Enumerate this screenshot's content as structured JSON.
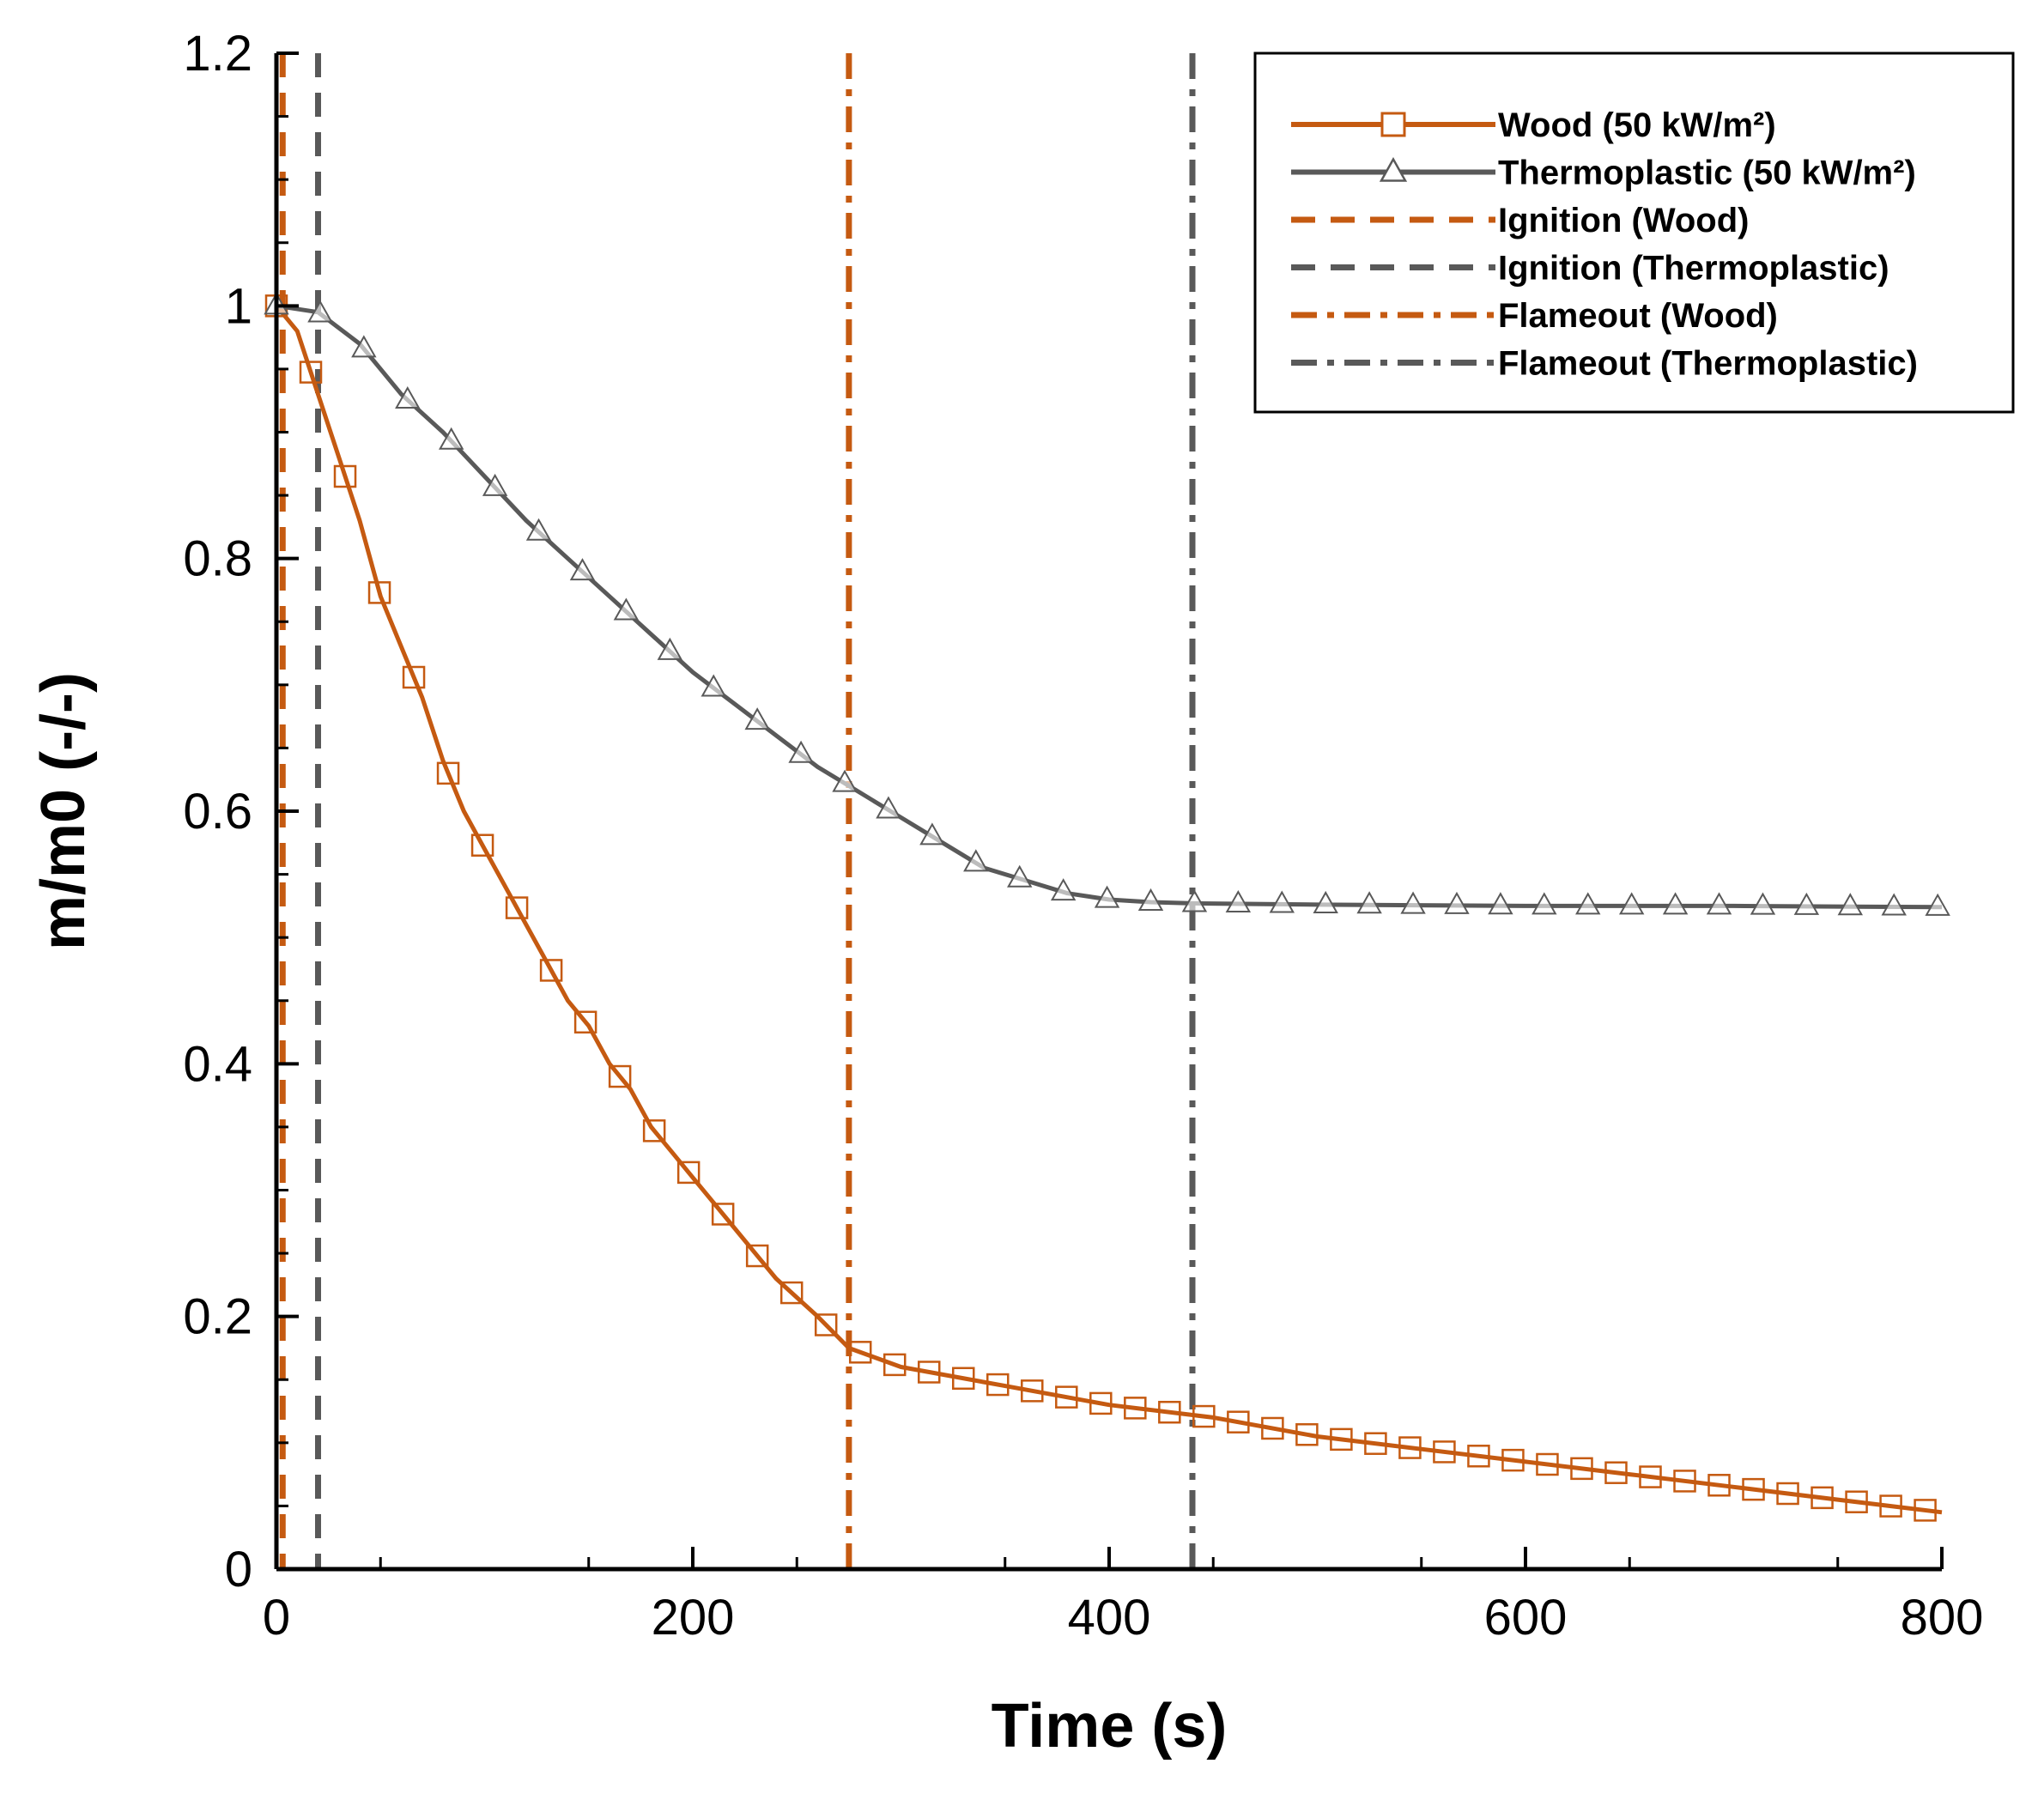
{
  "chart_data": {
    "type": "line",
    "xlabel": "Time (s)",
    "ylabel": "m/m0 (-/-)",
    "xlim": [
      0,
      800
    ],
    "ylim": [
      0,
      1.2
    ],
    "xticks": [
      0,
      200,
      400,
      600,
      800
    ],
    "xtick_labels": [
      "0",
      "200",
      "400",
      "600",
      "800"
    ],
    "yticks": [
      0,
      0.2,
      0.4,
      0.6,
      0.8,
      1,
      1.2
    ],
    "ytick_labels": [
      "0",
      "0.2",
      "0.4",
      "0.6",
      "0.8",
      "1",
      "1.2"
    ],
    "grid": false,
    "legend_position": "top-right",
    "colors": {
      "wood": "#c55a11",
      "thermoplastic": "#595959",
      "axis": "#000000"
    },
    "series": [
      {
        "name": "Wood (50 kW/m²)",
        "color": "#c55a11",
        "marker": "square",
        "x": [
          0,
          10,
          20,
          30,
          40,
          50,
          60,
          70,
          80,
          90,
          100,
          110,
          120,
          130,
          140,
          150,
          160,
          170,
          180,
          190,
          200,
          220,
          240,
          260,
          275,
          300,
          350,
          400,
          450,
          500,
          550,
          600,
          650,
          700,
          750,
          800
        ],
        "values": [
          1.0,
          0.98,
          0.93,
          0.88,
          0.83,
          0.77,
          0.73,
          0.69,
          0.64,
          0.6,
          0.57,
          0.54,
          0.51,
          0.48,
          0.45,
          0.43,
          0.4,
          0.38,
          0.35,
          0.33,
          0.31,
          0.27,
          0.23,
          0.2,
          0.175,
          0.16,
          0.145,
          0.13,
          0.12,
          0.105,
          0.095,
          0.085,
          0.075,
          0.065,
          0.055,
          0.045
        ]
      },
      {
        "name": "Thermoplastic (50 kW/m²)",
        "color": "#595959",
        "marker": "triangle",
        "x": [
          0,
          20,
          40,
          60,
          80,
          100,
          120,
          140,
          160,
          180,
          200,
          220,
          240,
          260,
          280,
          300,
          320,
          340,
          360,
          380,
          400,
          420,
          440,
          500,
          600,
          700,
          800
        ],
        "values": [
          1.0,
          0.995,
          0.97,
          0.93,
          0.9,
          0.865,
          0.83,
          0.8,
          0.77,
          0.74,
          0.71,
          0.685,
          0.66,
          0.635,
          0.615,
          0.595,
          0.575,
          0.555,
          0.545,
          0.535,
          0.53,
          0.528,
          0.527,
          0.526,
          0.525,
          0.525,
          0.524
        ]
      }
    ],
    "vertical_lines": [
      {
        "name": "Ignition (Wood)",
        "x": 3,
        "color": "#c55a11",
        "style": "dash"
      },
      {
        "name": "Ignition (Thermoplastic)",
        "x": 20,
        "color": "#595959",
        "style": "dash"
      },
      {
        "name": "Flameout (Wood)",
        "x": 275,
        "color": "#c55a11",
        "style": "dashdot"
      },
      {
        "name": "Flameout (Thermoplastic)",
        "x": 440,
        "color": "#595959",
        "style": "dashdot"
      }
    ],
    "legend": [
      {
        "label": "Wood (50 kW/m²)",
        "color": "#c55a11",
        "style": "solid",
        "marker": "square"
      },
      {
        "label": "Thermoplastic (50 kW/m²)",
        "color": "#595959",
        "style": "solid",
        "marker": "triangle"
      },
      {
        "label": "Ignition (Wood)",
        "color": "#c55a11",
        "style": "dash",
        "marker": "none"
      },
      {
        "label": "Ignition (Thermoplastic)",
        "color": "#595959",
        "style": "dash",
        "marker": "none"
      },
      {
        "label": "Flameout (Wood)",
        "color": "#c55a11",
        "style": "dashdot",
        "marker": "none"
      },
      {
        "label": "Flameout (Thermoplastic)",
        "color": "#595959",
        "style": "dashdot",
        "marker": "none"
      }
    ]
  }
}
